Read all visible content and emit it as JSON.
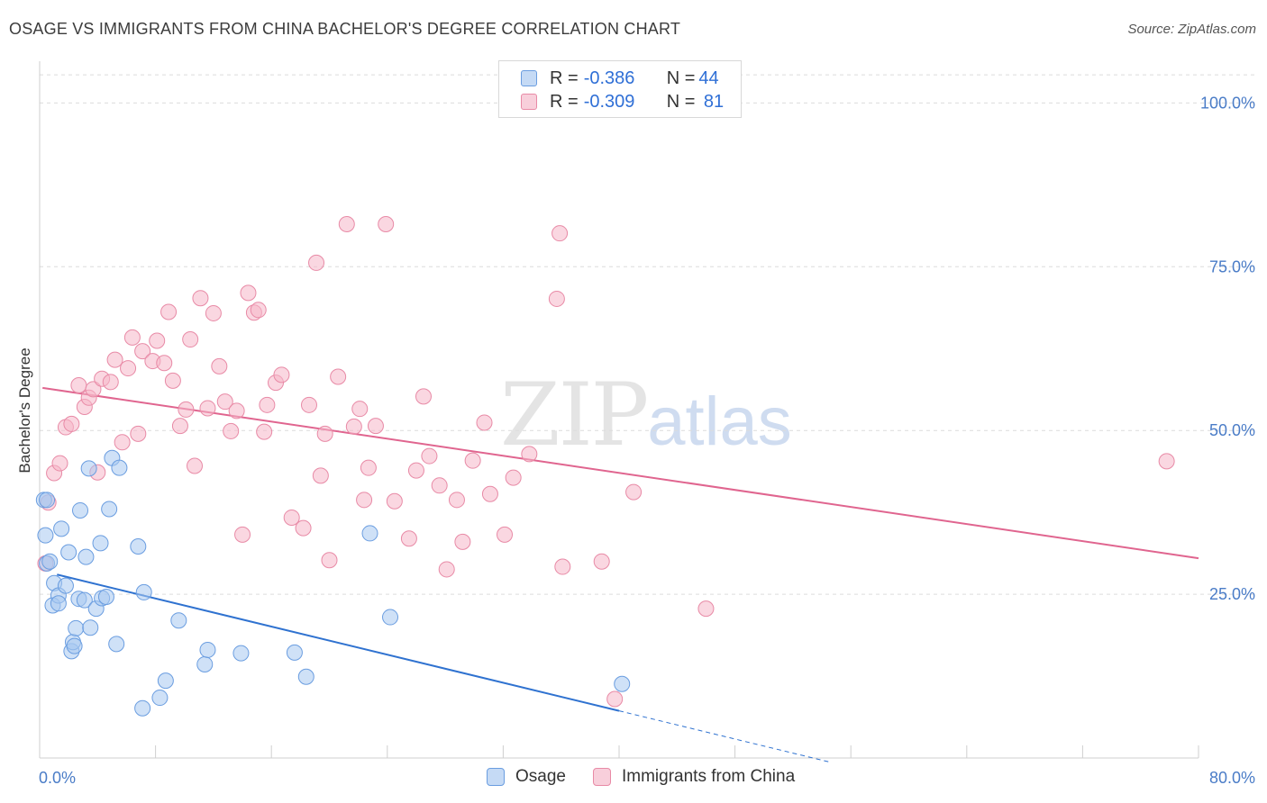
{
  "title": "OSAGE VS IMMIGRANTS FROM CHINA BACHELOR'S DEGREE CORRELATION CHART",
  "source": "Source: ZipAtlas.com",
  "watermark": {
    "zip": "ZIP",
    "atlas": "atlas"
  },
  "legend": {
    "rows": [
      {
        "r_label": "R = ",
        "r_value": "-0.386",
        "n_label": "N = ",
        "n_value": "44",
        "color": "#a8c8f0"
      },
      {
        "r_label": "R = ",
        "r_value": "-0.309",
        "n_label": "N = ",
        "n_value": " 81",
        "color": "#f5b7c9"
      }
    ]
  },
  "bottom_legend": [
    {
      "label": "Osage",
      "color": "#a8c8f0"
    },
    {
      "label": "Immigrants from China",
      "color": "#f5b7c9"
    }
  ],
  "chart_data": {
    "type": "scatter",
    "title": "OSAGE VS IMMIGRANTS FROM CHINA BACHELOR'S DEGREE CORRELATION CHART",
    "xlabel": "",
    "ylabel": "Bachelor's Degree",
    "xlim": [
      0,
      80
    ],
    "ylim": [
      0,
      105
    ],
    "x_tick_labels": [
      "0.0%",
      "80.0%"
    ],
    "y_ticks": [
      25,
      50,
      75,
      100
    ],
    "y_tick_labels": [
      "25.0%",
      "50.0%",
      "75.0%",
      "100.0%"
    ],
    "series": [
      {
        "name": "Osage",
        "color": "#a8c8f0",
        "stroke": "#6a9de0",
        "line_color": "#2f72d0",
        "trend": {
          "x0": 1.2,
          "y0": 28.0,
          "x1": 40.0,
          "y1": 7.2,
          "dash_to_x": 54.5,
          "dash_to_y": -0.6
        },
        "points": [
          [
            0.3,
            39.4
          ],
          [
            0.4,
            34.0
          ],
          [
            0.5,
            29.7
          ],
          [
            0.7,
            30.0
          ],
          [
            0.9,
            23.3
          ],
          [
            1.0,
            26.7
          ],
          [
            1.3,
            24.8
          ],
          [
            1.3,
            23.6
          ],
          [
            1.5,
            35.0
          ],
          [
            1.8,
            26.3
          ],
          [
            2.0,
            31.4
          ],
          [
            2.2,
            16.3
          ],
          [
            2.3,
            17.7
          ],
          [
            2.4,
            17.1
          ],
          [
            2.5,
            19.8
          ],
          [
            2.7,
            24.3
          ],
          [
            2.8,
            37.8
          ],
          [
            3.1,
            24.1
          ],
          [
            3.2,
            30.7
          ],
          [
            3.4,
            44.2
          ],
          [
            3.5,
            19.9
          ],
          [
            3.9,
            22.8
          ],
          [
            4.2,
            32.8
          ],
          [
            4.3,
            24.4
          ],
          [
            4.6,
            24.6
          ],
          [
            4.8,
            38.0
          ],
          [
            5.0,
            45.8
          ],
          [
            5.3,
            17.4
          ],
          [
            5.5,
            44.3
          ],
          [
            6.8,
            32.3
          ],
          [
            7.1,
            7.6
          ],
          [
            7.2,
            25.3
          ],
          [
            8.3,
            9.2
          ],
          [
            8.7,
            11.8
          ],
          [
            9.6,
            21.0
          ],
          [
            11.4,
            14.3
          ],
          [
            11.6,
            16.5
          ],
          [
            13.9,
            16.0
          ],
          [
            17.6,
            16.1
          ],
          [
            18.4,
            12.4
          ],
          [
            22.8,
            34.3
          ],
          [
            24.2,
            21.5
          ],
          [
            40.2,
            11.3
          ],
          [
            0.5,
            39.4
          ]
        ]
      },
      {
        "name": "Immigrants from China",
        "color": "#f5b7c9",
        "stroke": "#e88aa6",
        "line_color": "#e0658f",
        "trend": {
          "x0": 0.2,
          "y0": 56.5,
          "x1": 80.0,
          "y1": 30.5
        },
        "points": [
          [
            0.4,
            29.7
          ],
          [
            0.6,
            39.0
          ],
          [
            1.0,
            43.5
          ],
          [
            1.4,
            45.0
          ],
          [
            1.8,
            50.5
          ],
          [
            2.2,
            51.0
          ],
          [
            2.7,
            56.9
          ],
          [
            3.1,
            53.6
          ],
          [
            3.4,
            55.0
          ],
          [
            3.7,
            56.3
          ],
          [
            4.0,
            43.6
          ],
          [
            4.3,
            57.9
          ],
          [
            4.9,
            57.4
          ],
          [
            5.2,
            60.8
          ],
          [
            5.7,
            48.2
          ],
          [
            6.1,
            59.5
          ],
          [
            6.4,
            64.2
          ],
          [
            6.8,
            49.5
          ],
          [
            7.1,
            62.1
          ],
          [
            7.8,
            60.6
          ],
          [
            8.1,
            63.7
          ],
          [
            8.6,
            60.3
          ],
          [
            8.9,
            68.1
          ],
          [
            9.2,
            57.6
          ],
          [
            9.7,
            50.7
          ],
          [
            10.1,
            53.2
          ],
          [
            10.4,
            63.9
          ],
          [
            10.7,
            44.6
          ],
          [
            11.1,
            70.2
          ],
          [
            11.6,
            53.4
          ],
          [
            12.0,
            67.9
          ],
          [
            12.4,
            59.8
          ],
          [
            12.8,
            54.4
          ],
          [
            13.2,
            49.9
          ],
          [
            13.6,
            53.0
          ],
          [
            14.0,
            34.1
          ],
          [
            14.4,
            71.0
          ],
          [
            14.8,
            68.0
          ],
          [
            15.1,
            68.4
          ],
          [
            15.5,
            49.8
          ],
          [
            15.7,
            53.9
          ],
          [
            16.3,
            57.3
          ],
          [
            16.7,
            58.5
          ],
          [
            17.4,
            36.7
          ],
          [
            18.2,
            35.1
          ],
          [
            18.6,
            53.9
          ],
          [
            19.1,
            75.6
          ],
          [
            19.4,
            43.1
          ],
          [
            19.7,
            49.5
          ],
          [
            20.0,
            30.2
          ],
          [
            20.6,
            58.2
          ],
          [
            21.2,
            81.5
          ],
          [
            21.7,
            50.6
          ],
          [
            22.1,
            53.3
          ],
          [
            22.4,
            39.4
          ],
          [
            22.7,
            44.3
          ],
          [
            23.2,
            50.7
          ],
          [
            23.9,
            81.5
          ],
          [
            24.5,
            39.2
          ],
          [
            25.5,
            33.5
          ],
          [
            26.0,
            43.9
          ],
          [
            26.5,
            55.2
          ],
          [
            26.9,
            46.1
          ],
          [
            27.6,
            41.6
          ],
          [
            28.1,
            28.8
          ],
          [
            28.8,
            39.4
          ],
          [
            29.2,
            33.0
          ],
          [
            29.9,
            45.4
          ],
          [
            30.7,
            51.2
          ],
          [
            31.1,
            40.3
          ],
          [
            32.1,
            34.1
          ],
          [
            32.7,
            42.8
          ],
          [
            33.8,
            46.4
          ],
          [
            35.9,
            80.1
          ],
          [
            35.7,
            70.1
          ],
          [
            36.1,
            29.2
          ],
          [
            38.8,
            30.0
          ],
          [
            39.7,
            9.0
          ],
          [
            41.0,
            40.6
          ],
          [
            46.0,
            22.8
          ],
          [
            77.8,
            45.3
          ]
        ]
      }
    ]
  }
}
